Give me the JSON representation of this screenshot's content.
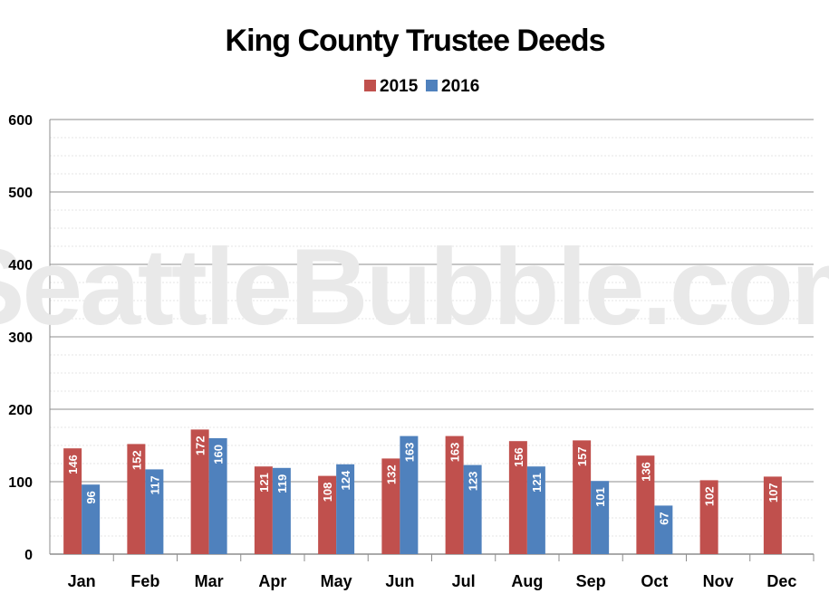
{
  "watermark": "SeattleBubble.com",
  "colors": {
    "s2015": "#c0504d",
    "s2016": "#4f81bd",
    "grid_major": "#8c8c8c",
    "grid_minor": "#e6e6e6"
  },
  "chart_data": {
    "type": "bar",
    "title": "King County Trustee Deeds",
    "xlabel": "",
    "ylabel": "",
    "ylim": [
      0,
      600
    ],
    "yticks": [
      0,
      100,
      200,
      300,
      400,
      500,
      600
    ],
    "grid": true,
    "legend_position": "top-center",
    "categories": [
      "Jan",
      "Feb",
      "Mar",
      "Apr",
      "May",
      "Jun",
      "Jul",
      "Aug",
      "Sep",
      "Oct",
      "Nov",
      "Dec"
    ],
    "series": [
      {
        "name": "2015",
        "color": "#c0504d",
        "values": [
          146,
          152,
          172,
          121,
          108,
          132,
          163,
          156,
          157,
          136,
          102,
          107
        ]
      },
      {
        "name": "2016",
        "color": "#4f81bd",
        "values": [
          96,
          117,
          160,
          119,
          124,
          163,
          123,
          121,
          101,
          67,
          null,
          null
        ]
      }
    ]
  }
}
